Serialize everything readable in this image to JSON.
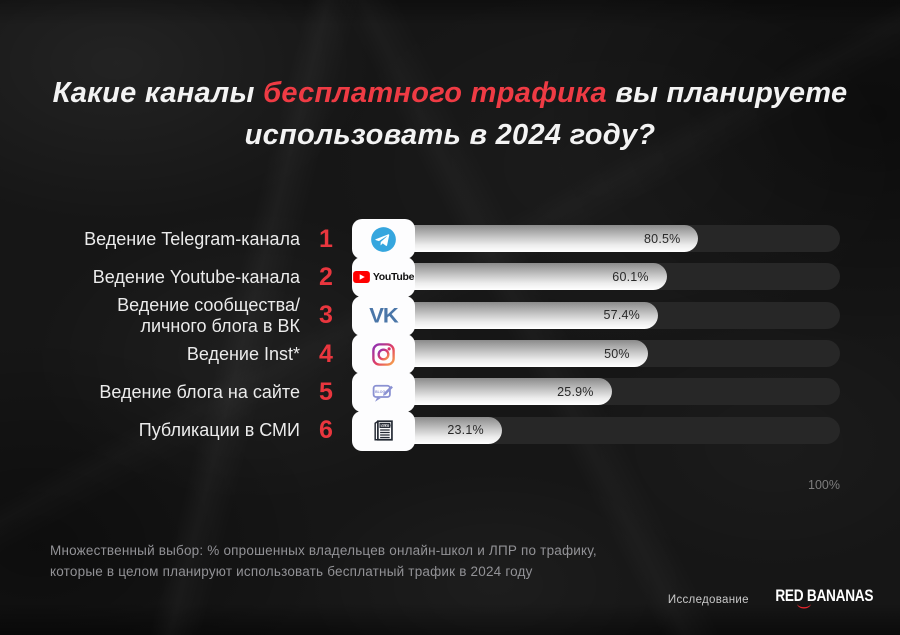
{
  "title": {
    "lead": "Какие каналы",
    "highlight": " бесплатного трафика ",
    "tail": "вы планируете",
    "line2": "использовать в 2024 году?"
  },
  "chart_data": {
    "type": "bar",
    "orientation": "horizontal",
    "title": "Какие каналы бесплатного трафика вы планируете использовать в 2024 году?",
    "unit": "%",
    "xlim": [
      0,
      100
    ],
    "axis_max_label": "100%",
    "categories": [
      "Ведение Telegram-канала",
      "Ведение Youtube-канала",
      "Ведение сообщества/ личного блога в ВК",
      "Ведение Inst*",
      "Ведение блога на сайте",
      "Публикации в СМИ"
    ],
    "values": [
      80.5,
      60.1,
      57.4,
      50,
      25.9,
      23.1
    ],
    "rows": [
      {
        "rank": "1",
        "label": "Ведение Telegram-канала",
        "value": 80.5,
        "value_label": "80.5%",
        "icon": "telegram-icon",
        "display_width_pct": 71
      },
      {
        "rank": "2",
        "label": "Ведение Youtube-канала",
        "value": 60.1,
        "value_label": "60.1%",
        "icon": "youtube-icon",
        "display_width_pct": 64.5
      },
      {
        "rank": "3",
        "label": "Ведение сообщества/\nличного блога в ВК",
        "value": 57.4,
        "value_label": "57.4%",
        "icon": "vk-icon",
        "display_width_pct": 62.7
      },
      {
        "rank": "4",
        "label": "Ведение Inst*",
        "value": 50,
        "value_label": "50%",
        "icon": "instagram-icon",
        "display_width_pct": 60.6
      },
      {
        "rank": "5",
        "label": "Ведение блога на сайте",
        "value": 25.9,
        "value_label": "25.9%",
        "icon": "blog-icon",
        "display_width_pct": 53.2
      },
      {
        "rank": "6",
        "label": "Публикации в СМИ",
        "value": 23.1,
        "value_label": "23.1%",
        "icon": "news-icon",
        "display_width_pct": 30.7
      }
    ],
    "legend": null,
    "grid": false
  },
  "footnote": "Множественный выбор: % опрошенных владельцев онлайн-школ и ЛПР по трафику,\nкоторые в целом планируют использовать бесплатный трафик в 2024 году",
  "credit": {
    "label": "Исследование",
    "brand": "RED BANANAS"
  },
  "colors": {
    "accent_red": "#ef3b44",
    "background": "#161616",
    "bar_track": "#272727",
    "bar_fill_top": "#8a8a8a",
    "bar_fill_bottom": "#ffffff",
    "telegram_blue": "#36a6de",
    "youtube_red": "#ff0000",
    "vk_blue": "#4a76a8",
    "blog_periwinkle": "#8a91d2",
    "news_dark": "#232933"
  }
}
